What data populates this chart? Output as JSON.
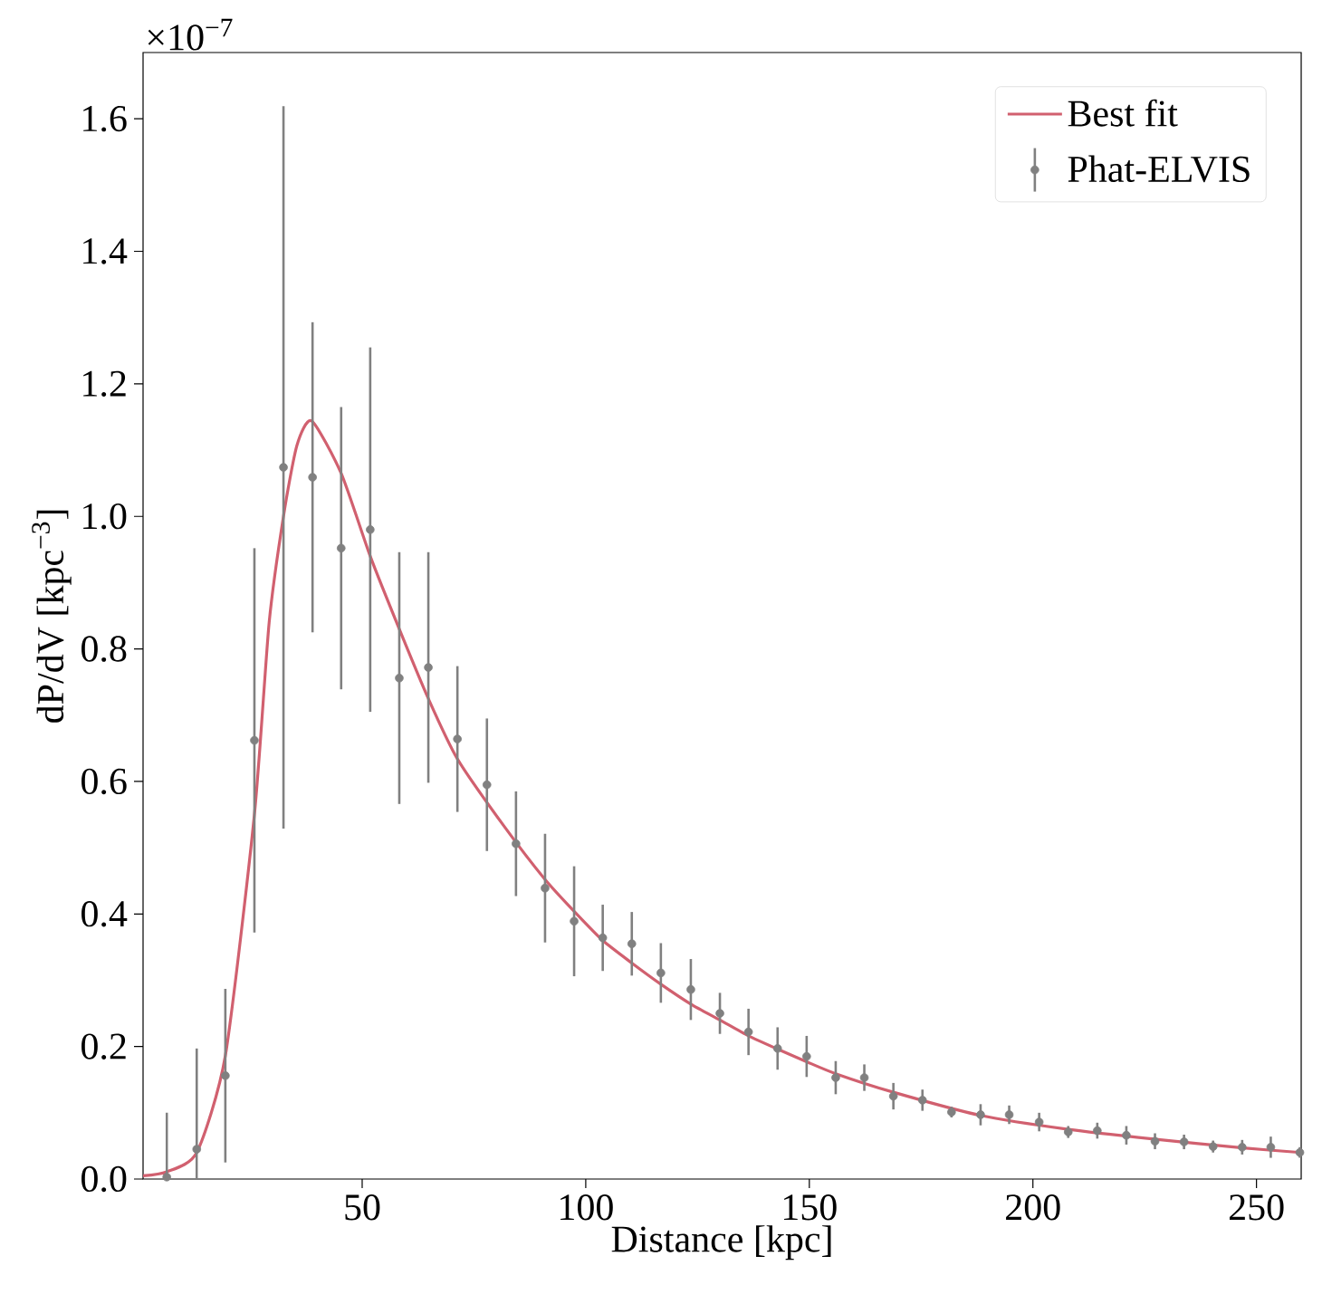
{
  "chart_data": {
    "type": "scatter",
    "xlabel": "Distance [kpc]",
    "ylabel": "dP/dV [kpc$^{−3}$]",
    "annotations": [
      "×10$^{−7}$"
    ],
    "xlim": [
      1,
      260
    ],
    "ylim": [
      0,
      1.7
    ],
    "xticks": [
      50,
      100,
      150,
      200,
      250
    ],
    "yticks": [
      {
        "value": 0,
        "label": "0.0"
      },
      0.2,
      0.4,
      0.6,
      0.8,
      {
        "value": 1,
        "label": "1.0"
      },
      1.2,
      1.4,
      1.6
    ],
    "legend": "top right",
    "series": [
      {
        "name": "Best fit",
        "type": "line",
        "color": "#d1606f",
        "line_style": "solid",
        "x": [
          1,
          6.3,
          13,
          19.4,
          25.9,
          29.2,
          32.4,
          35.4,
          38.7,
          45.3,
          51.8,
          58.3,
          64.8,
          71.3,
          82,
          90.9,
          97.4,
          103.8,
          110.3,
          116.8,
          123.5,
          130,
          136.4,
          142.9,
          149.4,
          155.9,
          168.8,
          188.3,
          207.9,
          227.5,
          247,
          260
        ],
        "values": [
          0.005,
          0.011,
          0.04,
          0.186,
          0.55,
          0.84,
          1.0,
          1.107,
          1.144,
          1.065,
          0.94,
          0.83,
          0.725,
          0.634,
          0.53,
          0.452,
          0.404,
          0.36,
          0.326,
          0.294,
          0.264,
          0.24,
          0.216,
          0.196,
          0.177,
          0.159,
          0.131,
          0.096,
          0.075,
          0.06,
          0.047,
          0.04
        ]
      },
      {
        "name": "Phat-ELVIS",
        "color": "#808080",
        "marker": "circle",
        "x": [
          6.3,
          13.0,
          19.4,
          25.9,
          32.4,
          38.9,
          45.3,
          51.8,
          58.3,
          64.8,
          71.3,
          77.9,
          84.4,
          90.9,
          97.4,
          103.8,
          110.3,
          116.8,
          123.5,
          130.0,
          136.4,
          142.9,
          149.4,
          155.9,
          162.3,
          168.8,
          175.3,
          181.8,
          188.3,
          194.7,
          201.4,
          207.9,
          214.4,
          220.9,
          227.3,
          233.8,
          240.3,
          246.8,
          253.2,
          259.7
        ],
        "values": [
          0.003,
          0.045,
          0.156,
          0.662,
          1.074,
          1.059,
          0.952,
          0.98,
          0.756,
          0.772,
          0.664,
          0.595,
          0.506,
          0.439,
          0.389,
          0.364,
          0.355,
          0.311,
          0.286,
          0.25,
          0.222,
          0.197,
          0.185,
          0.153,
          0.153,
          0.125,
          0.119,
          0.101,
          0.097,
          0.097,
          0.086,
          0.071,
          0.073,
          0.066,
          0.057,
          0.056,
          0.049,
          0.048,
          0.048,
          0.04
        ],
        "errors": [
          [
            0,
            0.1
          ],
          [
            0,
            0.197
          ],
          0.131,
          0.29,
          0.545,
          0.234,
          0.213,
          0.275,
          0.19,
          0.174,
          0.11,
          0.1,
          0.079,
          0.082,
          0.083,
          0.05,
          0.048,
          0.045,
          0.046,
          0.031,
          0.035,
          0.032,
          0.031,
          0.025,
          0.02,
          0.02,
          0.016,
          0.008,
          0.016,
          0.014,
          0.014,
          0.009,
          0.012,
          0.014,
          0.012,
          0.011,
          0.009,
          0.011,
          0.016,
          0.008
        ]
      }
    ]
  }
}
